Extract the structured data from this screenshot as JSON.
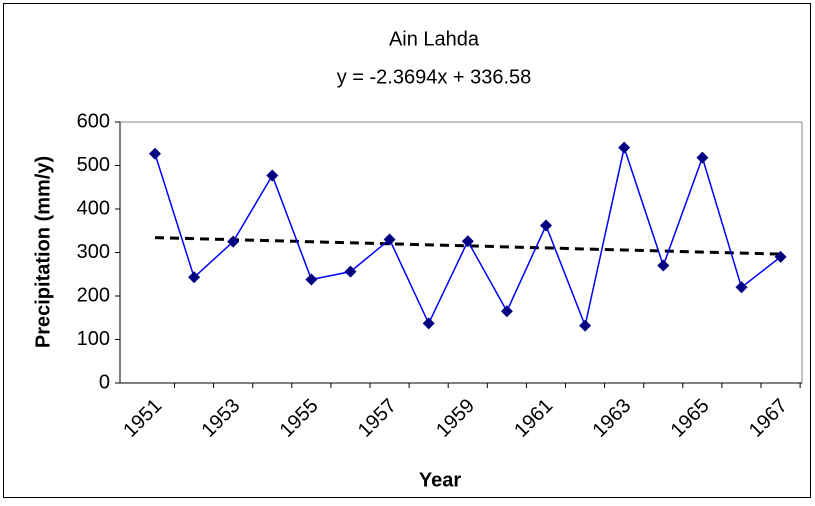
{
  "chart_data": {
    "type": "line",
    "title": "Ain Lahda",
    "x_label": "Year",
    "y_label": "Precipitation (mm/y)",
    "categories": [
      "1951",
      null,
      "1953",
      null,
      "1955",
      null,
      "1957",
      null,
      "1959",
      null,
      "1961",
      null,
      "1963",
      null,
      "1965",
      null,
      "1967"
    ],
    "series": [
      {
        "color": "#0000ff",
        "marker_color": "#000080",
        "values": [
          527,
          243,
          325,
          477,
          238,
          256,
          330,
          137,
          326,
          165,
          362,
          132,
          541,
          270,
          518,
          220,
          290
        ]
      }
    ],
    "trendline": {
      "label": "y = -2.3694x + 336.58",
      "color": "#000000",
      "values": [
        334.2,
        331.8,
        329.5,
        327.1,
        324.7,
        322.4,
        320.0,
        317.6,
        315.3,
        312.9,
        310.5,
        308.1,
        305.8,
        303.4,
        301.0,
        298.7,
        296.3
      ]
    },
    "ylim": [
      0,
      600
    ],
    "yticks": [
      0,
      100,
      200,
      300,
      400,
      500,
      600
    ],
    "grid": false
  }
}
